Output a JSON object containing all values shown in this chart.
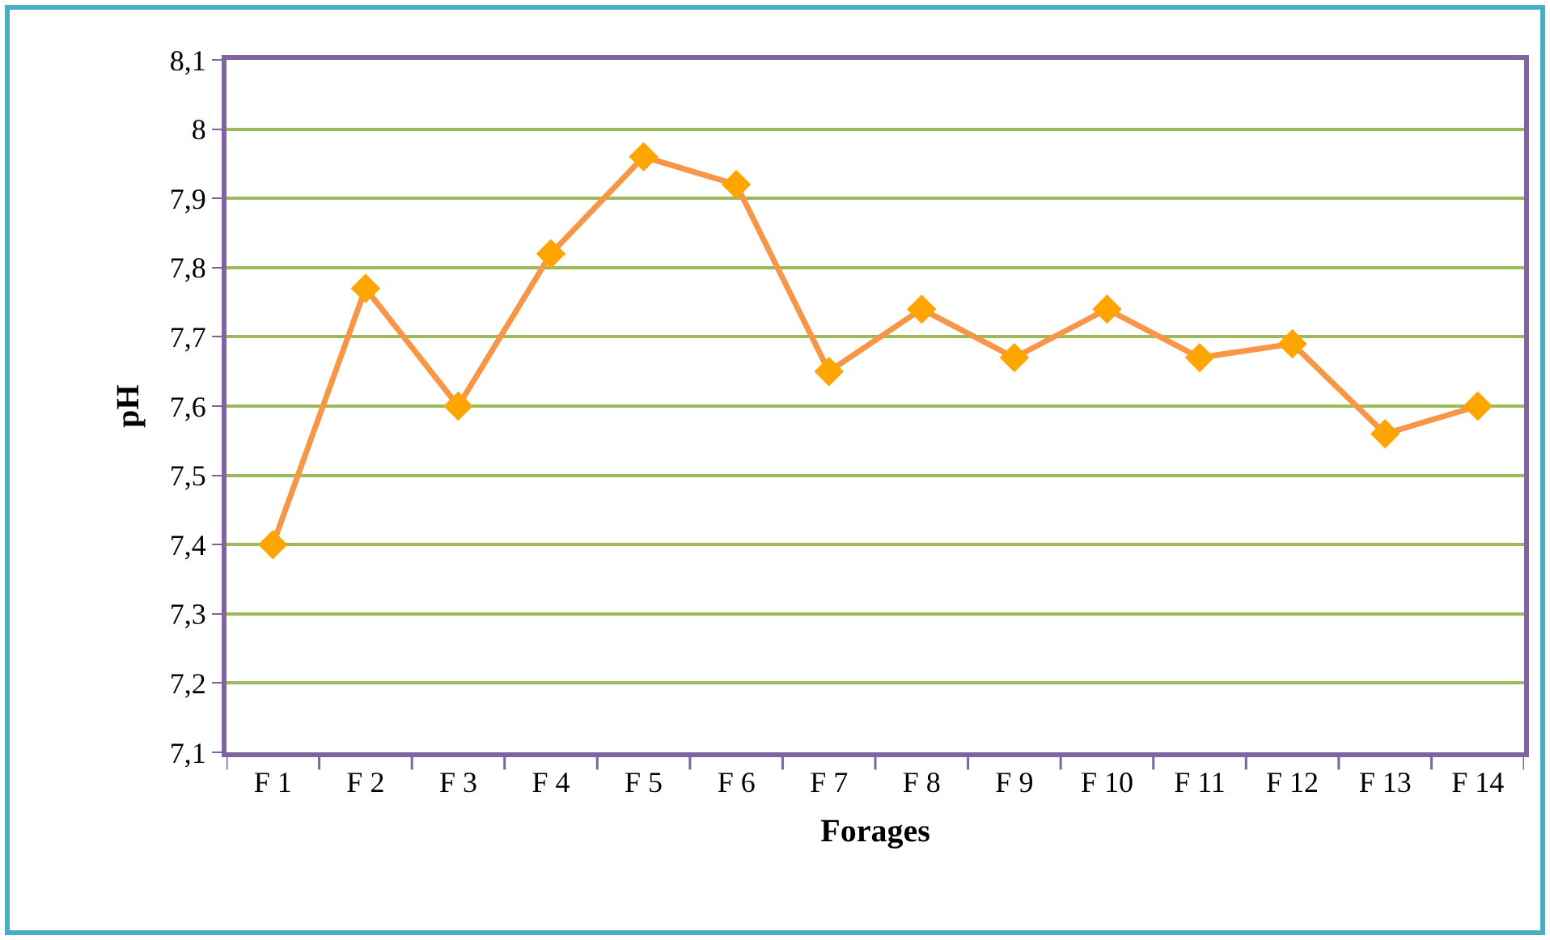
{
  "chart_data": {
    "type": "line",
    "xlabel": "Forages",
    "ylabel": "pH",
    "categories": [
      "F 1",
      "F 2",
      "F 3",
      "F 4",
      "F 5",
      "F 6",
      "F 7",
      "F 8",
      "F 9",
      "F 10",
      "F 11",
      "F 12",
      "F 13",
      "F 14"
    ],
    "series": [
      {
        "color": "#f79646",
        "values": [
          7.4,
          7.77,
          7.6,
          7.82,
          7.96,
          7.92,
          7.65,
          7.74,
          7.67,
          7.74,
          7.67,
          7.69,
          7.56,
          7.6
        ]
      }
    ],
    "ylim": [
      7.1,
      8.1
    ],
    "yticks": [
      {
        "value": 7.1,
        "label": "7,1"
      },
      {
        "value": 7.2,
        "label": "7,2"
      },
      {
        "value": 7.3,
        "label": "7,3"
      },
      {
        "value": 7.4,
        "label": "7,4"
      },
      {
        "value": 7.5,
        "label": "7,5"
      },
      {
        "value": 7.6,
        "label": "7,6"
      },
      {
        "value": 7.7,
        "label": "7,7"
      },
      {
        "value": 7.8,
        "label": "7,8"
      },
      {
        "value": 7.9,
        "label": "7,9"
      },
      {
        "value": 8,
        "label": "8"
      },
      {
        "value": 8.1,
        "label": "8,1"
      }
    ],
    "grid": "y",
    "marker": "diamond",
    "line_style": "solid"
  }
}
